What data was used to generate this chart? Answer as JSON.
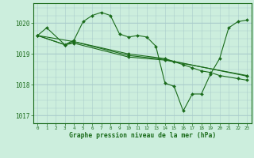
{
  "background_color": "#cceedd",
  "plot_bg_color": "#cceedd",
  "grid_color": "#aacccc",
  "line_color": "#1a6b1a",
  "marker_color": "#1a6b1a",
  "xlabel": "Graphe pression niveau de la mer (hPa)",
  "xlabel_color": "#1a6b1a",
  "ylim": [
    1016.75,
    1020.65
  ],
  "xlim": [
    -0.5,
    23.5
  ],
  "yticks": [
    1017,
    1018,
    1019,
    1020
  ],
  "xticks": [
    0,
    1,
    2,
    3,
    4,
    5,
    6,
    7,
    8,
    9,
    10,
    11,
    12,
    13,
    14,
    15,
    16,
    17,
    18,
    19,
    20,
    21,
    22,
    23
  ],
  "series": [
    {
      "x": [
        0,
        1,
        3,
        4,
        5,
        6,
        7,
        8,
        9,
        10,
        11,
        12,
        13,
        14,
        15,
        16,
        17,
        18,
        19,
        20,
        21,
        22,
        23
      ],
      "y": [
        1019.6,
        1019.85,
        1019.3,
        1019.45,
        1020.05,
        1020.25,
        1020.35,
        1020.25,
        1019.65,
        1019.55,
        1019.6,
        1019.55,
        1019.25,
        1018.05,
        1017.95,
        1017.15,
        1017.7,
        1017.7,
        1018.35,
        1018.85,
        1019.85,
        1020.05,
        1020.1
      ]
    },
    {
      "x": [
        0,
        3,
        4,
        10,
        14,
        15,
        16,
        17,
        18,
        19,
        20,
        22,
        23
      ],
      "y": [
        1019.6,
        1019.3,
        1019.4,
        1019.0,
        1018.85,
        1018.75,
        1018.65,
        1018.55,
        1018.45,
        1018.4,
        1018.3,
        1018.2,
        1018.15
      ]
    },
    {
      "x": [
        0,
        3,
        4,
        10,
        14,
        23
      ],
      "y": [
        1019.6,
        1019.3,
        1019.35,
        1018.9,
        1018.8,
        1018.3
      ]
    },
    {
      "x": [
        0,
        4,
        10,
        14,
        23
      ],
      "y": [
        1019.6,
        1019.4,
        1018.95,
        1018.82,
        1018.28
      ]
    }
  ]
}
